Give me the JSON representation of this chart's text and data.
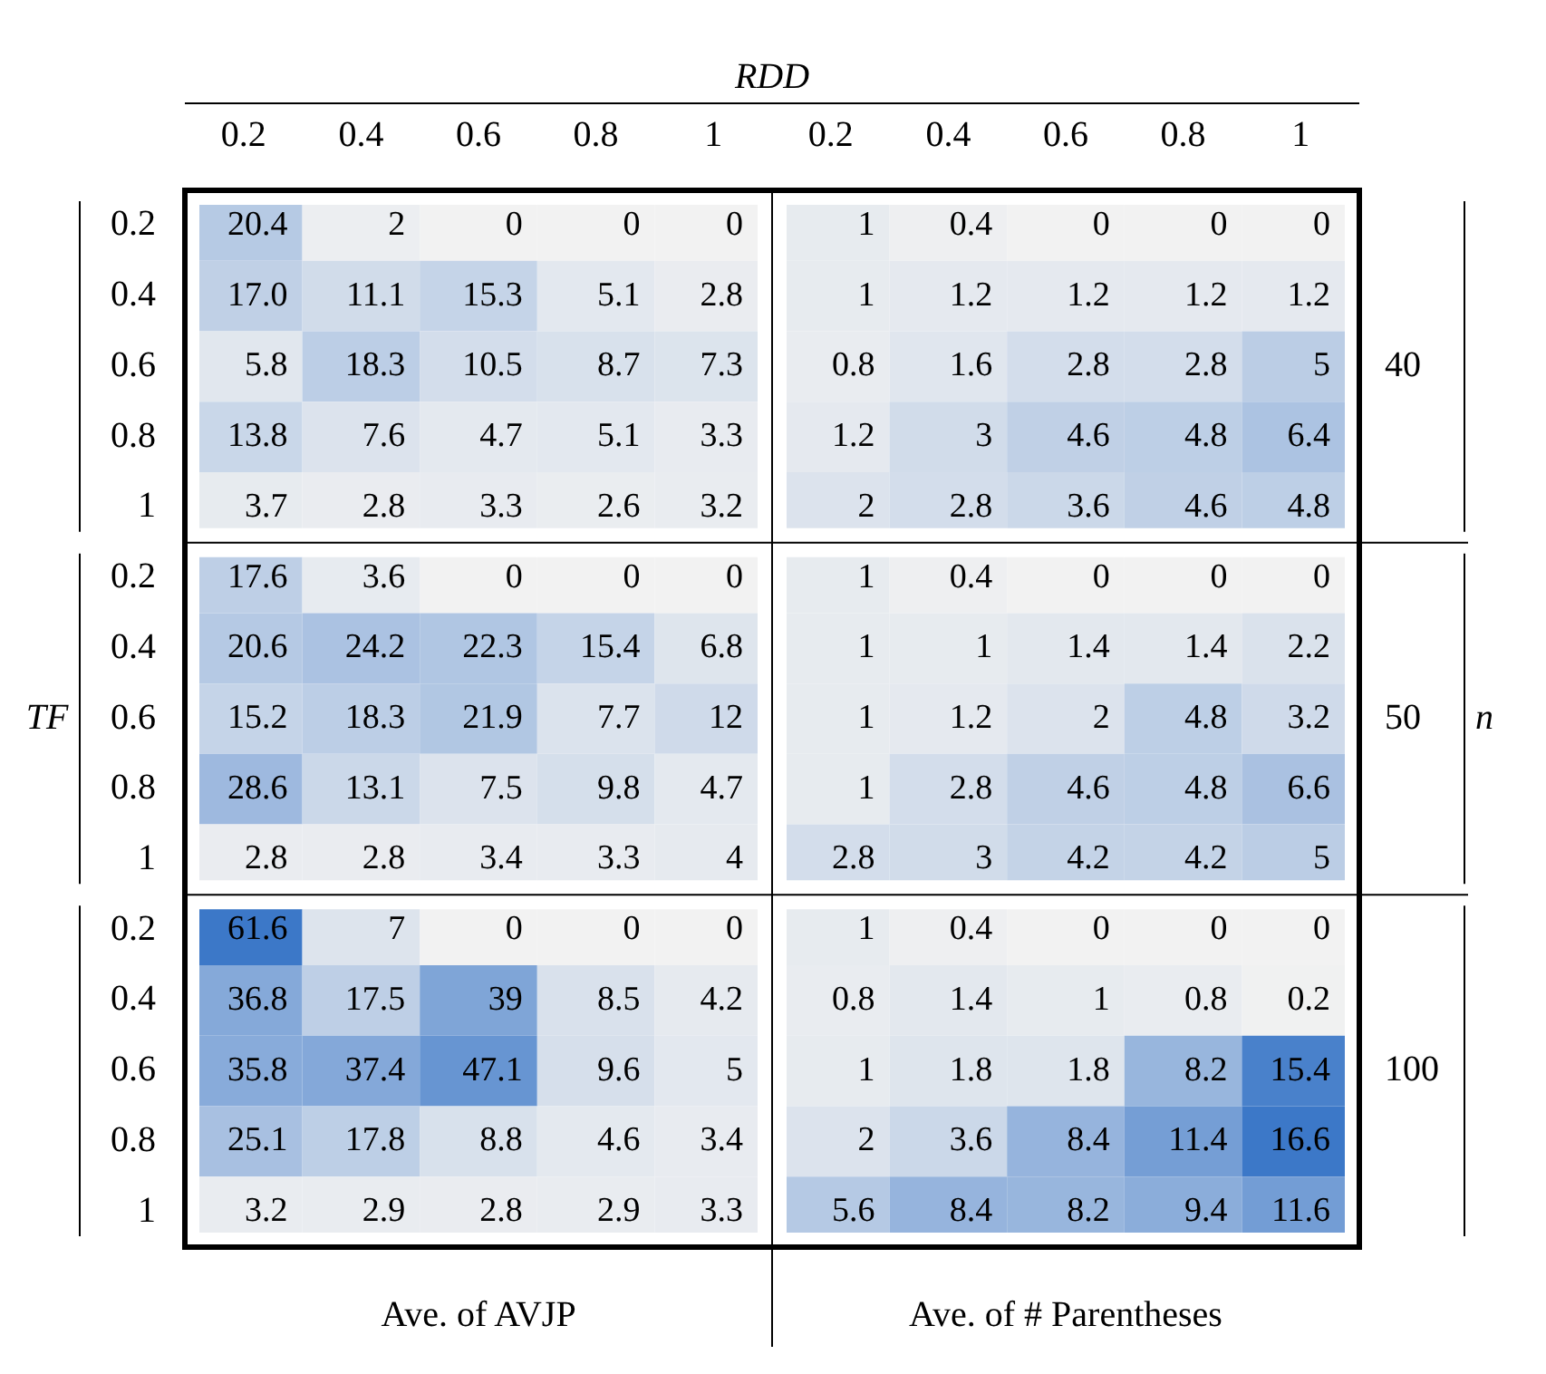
{
  "chart_data": {
    "type": "heatmap",
    "xlabel": "RDD",
    "ylabel": "TF",
    "y2label": "n",
    "categories": [
      "0.2",
      "0.4",
      "0.6",
      "0.8",
      "1",
      "0.2",
      "0.4",
      "0.6",
      "0.8",
      "1"
    ],
    "y_categories": [
      "0.2",
      "0.4",
      "0.6",
      "0.8",
      "1",
      "0.2",
      "0.4",
      "0.6",
      "0.8",
      "1",
      "0.2",
      "0.4",
      "0.6",
      "0.8",
      "1"
    ],
    "y2_categories": [
      null,
      null,
      "40",
      null,
      null,
      null,
      null,
      "50",
      null,
      null,
      null,
      null,
      "100",
      null,
      null
    ],
    "cells": [
      [
        20.4,
        2,
        0,
        0,
        0,
        1,
        0.4,
        0,
        0,
        0
      ],
      [
        17.0,
        11.1,
        15.3,
        5.1,
        2.8,
        1,
        1.2,
        1.2,
        1.2,
        1.2
      ],
      [
        5.8,
        18.3,
        10.5,
        8.7,
        7.3,
        0.8,
        1.6,
        2.8,
        2.8,
        5
      ],
      [
        13.8,
        7.6,
        4.7,
        5.1,
        3.3,
        1.2,
        3,
        4.6,
        4.8,
        6.4
      ],
      [
        3.7,
        2.8,
        3.3,
        2.6,
        3.2,
        2,
        2.8,
        3.6,
        4.6,
        4.8
      ],
      [
        17.6,
        3.6,
        0,
        0,
        0,
        1,
        0.4,
        0,
        0,
        0
      ],
      [
        20.6,
        24.2,
        22.3,
        15.4,
        6.8,
        1,
        1,
        1.4,
        1.4,
        2.2
      ],
      [
        15.2,
        18.3,
        21.9,
        7.7,
        12,
        1,
        1.2,
        2,
        4.8,
        3.2
      ],
      [
        28.6,
        13.1,
        7.5,
        9.8,
        4.7,
        1,
        2.8,
        4.6,
        4.8,
        6.6
      ],
      [
        2.8,
        2.8,
        3.4,
        3.3,
        4,
        2.8,
        3,
        4.2,
        4.2,
        5
      ],
      [
        61.6,
        7,
        0,
        0,
        0,
        1,
        0.4,
        0,
        0,
        0
      ],
      [
        36.8,
        17.5,
        39,
        8.5,
        4.2,
        0.8,
        1.4,
        1,
        0.8,
        0.2
      ],
      [
        35.8,
        37.4,
        47.1,
        9.6,
        5,
        1,
        1.8,
        1.8,
        8.2,
        15.4
      ],
      [
        25.1,
        17.8,
        8.8,
        4.6,
        3.4,
        2,
        3.6,
        8.4,
        11.4,
        16.6
      ],
      [
        3.2,
        2.9,
        2.8,
        2.9,
        3.3,
        5.6,
        8.4,
        8.2,
        9.4,
        11.6
      ]
    ],
    "cell_labels": [
      [
        "20.4",
        "2",
        "0",
        "0",
        "0",
        "1",
        "0.4",
        "0",
        "0",
        "0"
      ],
      [
        "17.0",
        "11.1",
        "15.3",
        "5.1",
        "2.8",
        "1",
        "1.2",
        "1.2",
        "1.2",
        "1.2"
      ],
      [
        "5.8",
        "18.3",
        "10.5",
        "8.7",
        "7.3",
        "0.8",
        "1.6",
        "2.8",
        "2.8",
        "5"
      ],
      [
        "13.8",
        "7.6",
        "4.7",
        "5.1",
        "3.3",
        "1.2",
        "3",
        "4.6",
        "4.8",
        "6.4"
      ],
      [
        "3.7",
        "2.8",
        "3.3",
        "2.6",
        "3.2",
        "2",
        "2.8",
        "3.6",
        "4.6",
        "4.8"
      ],
      [
        "17.6",
        "3.6",
        "0",
        "0",
        "0",
        "1",
        "0.4",
        "0",
        "0",
        "0"
      ],
      [
        "20.6",
        "24.2",
        "22.3",
        "15.4",
        "6.8",
        "1",
        "1",
        "1.4",
        "1.4",
        "2.2"
      ],
      [
        "15.2",
        "18.3",
        "21.9",
        "7.7",
        "12",
        "1",
        "1.2",
        "2",
        "4.8",
        "3.2"
      ],
      [
        "28.6",
        "13.1",
        "7.5",
        "9.8",
        "4.7",
        "1",
        "2.8",
        "4.6",
        "4.8",
        "6.6"
      ],
      [
        "2.8",
        "2.8",
        "3.4",
        "3.3",
        "4",
        "2.8",
        "3",
        "4.2",
        "4.2",
        "5"
      ],
      [
        "61.6",
        "7",
        "0",
        "0",
        "0",
        "1",
        "0.4",
        "0",
        "0",
        "0"
      ],
      [
        "36.8",
        "17.5",
        "39",
        "8.5",
        "4.2",
        "0.8",
        "1.4",
        "1",
        "0.8",
        "0.2"
      ],
      [
        "35.8",
        "37.4",
        "47.1",
        "9.6",
        "5",
        "1",
        "1.8",
        "1.8",
        "8.2",
        "15.4"
      ],
      [
        "25.1",
        "17.8",
        "8.8",
        "4.6",
        "3.4",
        "2",
        "3.6",
        "8.4",
        "11.4",
        "16.6"
      ],
      [
        "3.2",
        "2.9",
        "2.8",
        "2.9",
        "3.3",
        "5.6",
        "8.4",
        "8.2",
        "9.4",
        "11.6"
      ]
    ],
    "annotations": [
      "Ave. of AVJP",
      "Ave. of # Parentheses"
    ],
    "data_labels": true
  }
}
